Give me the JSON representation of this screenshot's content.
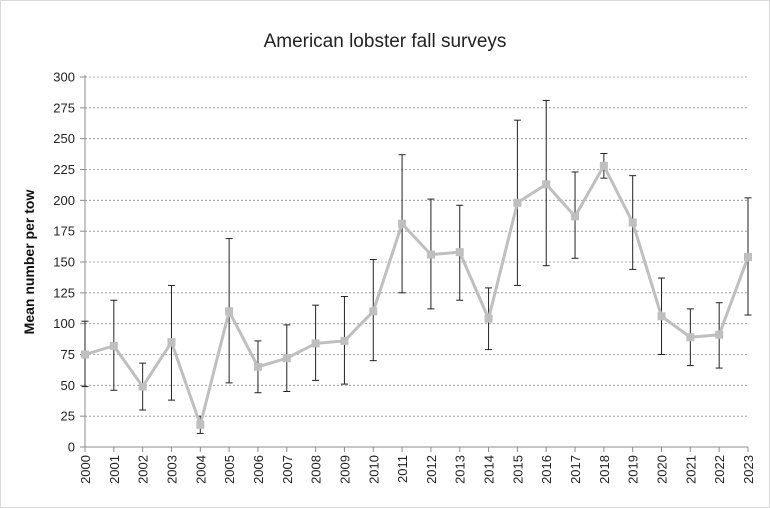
{
  "chart_data": {
    "type": "line",
    "title": "American lobster fall surveys",
    "xlabel": "",
    "ylabel": "Mean number per tow",
    "ylim": [
      0,
      300
    ],
    "yticks": [
      0,
      25,
      50,
      75,
      100,
      125,
      150,
      175,
      200,
      225,
      250,
      275,
      300
    ],
    "grid": true,
    "legend": "none",
    "categories": [
      "2000",
      "2001",
      "2002",
      "2003",
      "2004",
      "2005",
      "2006",
      "2007",
      "2008",
      "2009",
      "2010",
      "2011",
      "2012",
      "2013",
      "2014",
      "2015",
      "2016",
      "2017",
      "2018",
      "2019",
      "2020",
      "2021",
      "2022",
      "2023"
    ],
    "series": [
      {
        "values": [
          75,
          82,
          49,
          85,
          18,
          110,
          65,
          72,
          84,
          86,
          110,
          181,
          156,
          158,
          104,
          198,
          213,
          187,
          228,
          182,
          106,
          89,
          91,
          154
        ],
        "error_low": [
          49,
          46,
          30,
          38,
          11,
          52,
          44,
          45,
          54,
          51,
          70,
          125,
          112,
          119,
          79,
          131,
          147,
          153,
          218,
          144,
          75,
          66,
          64,
          107
        ],
        "error_high": [
          102,
          119,
          68,
          131,
          25,
          169,
          86,
          99,
          115,
          122,
          152,
          237,
          201,
          196,
          129,
          265,
          281,
          223,
          238,
          220,
          137,
          112,
          117,
          202
        ],
        "color": "#bfbfbf"
      }
    ]
  }
}
